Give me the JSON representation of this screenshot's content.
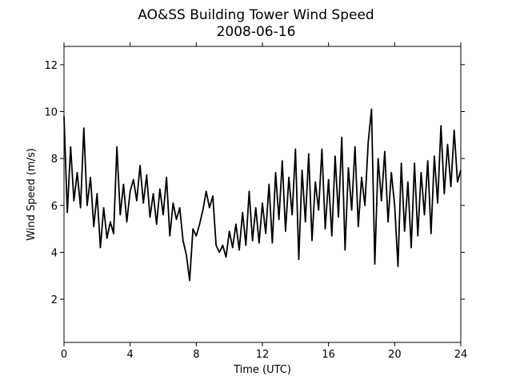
{
  "chart_data": {
    "type": "line",
    "title": "AO&SS Building Tower Wind Speed",
    "subtitle": "2008-06-16",
    "xlabel": "Time (UTC)",
    "ylabel": "Wind Speed (m/s)",
    "color": "#000000",
    "xlim": [
      0,
      24
    ],
    "ylim": [
      0.16,
      12.78
    ],
    "xticks": [
      0,
      4,
      8,
      12,
      16,
      20,
      24
    ],
    "yticks": [
      2,
      4,
      6,
      8,
      10,
      12
    ],
    "x": [
      0,
      0.2,
      0.4,
      0.6,
      0.8,
      1.0,
      1.2,
      1.4,
      1.6,
      1.8,
      2.0,
      2.2,
      2.4,
      2.6,
      2.8,
      3.0,
      3.2,
      3.4,
      3.6,
      3.8,
      4.0,
      4.2,
      4.4,
      4.6,
      4.8,
      5.0,
      5.2,
      5.4,
      5.6,
      5.8,
      6.0,
      6.2,
      6.4,
      6.6,
      6.8,
      7.0,
      7.2,
      7.4,
      7.6,
      7.8,
      8.0,
      8.2,
      8.4,
      8.6,
      8.8,
      9.0,
      9.2,
      9.4,
      9.6,
      9.8,
      10.0,
      10.2,
      10.4,
      10.6,
      10.8,
      11.0,
      11.2,
      11.4,
      11.6,
      11.8,
      12.0,
      12.2,
      12.4,
      12.6,
      12.8,
      13.0,
      13.2,
      13.4,
      13.6,
      13.8,
      14.0,
      14.2,
      14.4,
      14.6,
      14.8,
      15.0,
      15.2,
      15.4,
      15.6,
      15.8,
      16.0,
      16.2,
      16.4,
      16.6,
      16.8,
      17.0,
      17.2,
      17.4,
      17.6,
      17.8,
      18.0,
      18.2,
      18.4,
      18.6,
      18.8,
      19.0,
      19.2,
      19.4,
      19.6,
      19.8,
      20.0,
      20.2,
      20.4,
      20.6,
      20.8,
      21.0,
      21.2,
      21.4,
      21.6,
      21.8,
      22.0,
      22.2,
      22.4,
      22.6,
      22.8,
      23.0,
      23.2,
      23.4,
      23.6,
      23.8,
      24.0
    ],
    "values": [
      9.8,
      5.7,
      8.5,
      6.2,
      7.4,
      5.9,
      9.3,
      6.0,
      7.2,
      5.1,
      6.5,
      4.2,
      5.9,
      4.6,
      5.3,
      4.8,
      8.5,
      5.6,
      6.9,
      5.3,
      6.6,
      7.1,
      6.2,
      7.7,
      6.1,
      7.3,
      5.5,
      6.5,
      5.2,
      6.7,
      5.6,
      7.2,
      4.7,
      6.1,
      5.4,
      5.9,
      4.5,
      3.9,
      2.8,
      5.0,
      4.7,
      5.2,
      5.8,
      6.6,
      5.9,
      6.4,
      4.3,
      4.0,
      4.3,
      3.8,
      4.9,
      4.2,
      5.2,
      4.1,
      5.7,
      4.3,
      6.6,
      4.5,
      5.9,
      4.4,
      6.1,
      4.8,
      6.9,
      4.4,
      7.4,
      5.4,
      7.9,
      4.9,
      7.2,
      5.6,
      8.4,
      3.7,
      7.5,
      5.3,
      8.2,
      4.5,
      7.0,
      5.8,
      8.4,
      5.0,
      7.1,
      4.7,
      8.1,
      5.5,
      8.9,
      4.1,
      7.6,
      5.8,
      8.5,
      5.1,
      7.2,
      6.0,
      8.7,
      10.1,
      3.5,
      8.0,
      6.2,
      8.3,
      5.3,
      7.4,
      6.0,
      3.4,
      7.8,
      4.9,
      7.0,
      4.2,
      7.8,
      4.7,
      7.4,
      5.6,
      7.9,
      4.8,
      8.1,
      6.1,
      9.4,
      6.5,
      8.6,
      6.8,
      9.2,
      7.0,
      7.5
    ]
  }
}
